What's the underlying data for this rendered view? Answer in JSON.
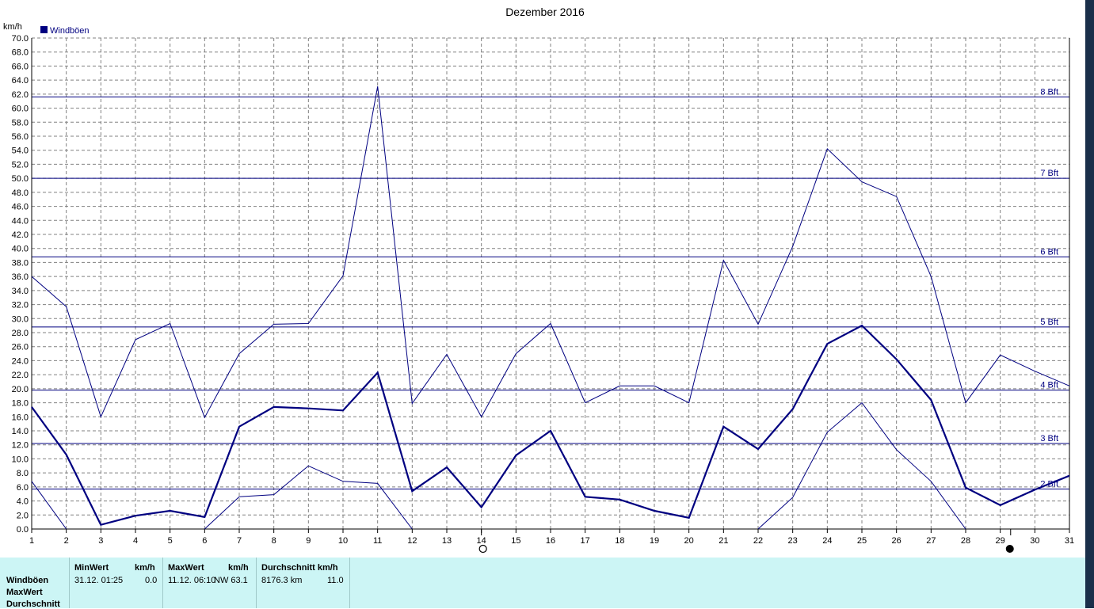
{
  "chart_data": {
    "type": "line",
    "title": "Dezember 2016",
    "ylabel": "km/h",
    "legend": [
      "Windböen"
    ],
    "legend_position": "top-left",
    "x": [
      1,
      2,
      3,
      4,
      5,
      6,
      7,
      8,
      9,
      10,
      11,
      12,
      13,
      14,
      15,
      16,
      17,
      18,
      19,
      20,
      21,
      22,
      23,
      24,
      25,
      26,
      27,
      28,
      29,
      30,
      31
    ],
    "xlim": [
      1,
      31
    ],
    "ylim": [
      0,
      70
    ],
    "ytick_step": 2,
    "grid": true,
    "series": [
      {
        "name": "Windböen",
        "values": [
          36.0,
          31.7,
          16.0,
          27.0,
          29.3,
          15.9,
          25.0,
          29.2,
          29.3,
          36.1,
          63.1,
          17.9,
          24.9,
          16.0,
          25.0,
          29.3,
          18.0,
          20.4,
          20.4,
          18.0,
          38.3,
          29.2,
          40.3,
          54.2,
          49.5,
          47.4,
          36.0,
          18.0,
          24.8,
          22.5,
          20.4
        ],
        "color": "#000080",
        "style": "max"
      },
      {
        "name": "Windböen",
        "values": [
          17.4,
          10.6,
          0.6,
          1.9,
          2.6,
          1.7,
          14.6,
          17.4,
          17.2,
          16.9,
          22.3,
          5.4,
          8.8,
          3.1,
          10.5,
          14.0,
          4.6,
          4.2,
          2.6,
          1.6,
          14.6,
          11.4,
          17.1,
          26.4,
          29.0,
          24.2,
          18.4,
          5.9,
          3.4,
          5.6,
          7.6
        ],
        "color": "#000080",
        "style": "avg"
      },
      {
        "name": "Windböen",
        "values": [
          6.8,
          0.0,
          null,
          null,
          null,
          0.0,
          4.6,
          4.9,
          9.0,
          6.8,
          6.5,
          0.0,
          null,
          null,
          null,
          null,
          null,
          null,
          null,
          null,
          null,
          0.0,
          4.5,
          13.8,
          18.0,
          11.3,
          6.8,
          0.0,
          null,
          null,
          null
        ],
        "color": "#000080",
        "style": "min"
      }
    ],
    "reference_lines": [
      {
        "label": "2 Bft",
        "value": 5.7
      },
      {
        "label": "3 Bft",
        "value": 12.2
      },
      {
        "label": "4 Bft",
        "value": 19.8
      },
      {
        "label": "5 Bft",
        "value": 28.8
      },
      {
        "label": "6 Bft",
        "value": 38.8
      },
      {
        "label": "7 Bft",
        "value": 50.0
      },
      {
        "label": "8 Bft",
        "value": 61.6
      }
    ],
    "moon_markers": [
      {
        "x": 14,
        "symbol": "○"
      },
      {
        "x": 29.3,
        "symbol": "●"
      }
    ]
  },
  "stats": {
    "row_labels": [
      "Windböen",
      "MaxWert",
      "Durchschnitt"
    ],
    "min_header": "MinWert",
    "min_unit": "km/h",
    "min_time": "31.12.  01:25",
    "min_value": "0.0",
    "max_header": "MaxWert",
    "max_unit": "km/h",
    "max_time": "11.12.  06:10",
    "max_dir_value": "NW 63.1",
    "avg_header": "Durchschnitt km/h",
    "avg_distance": "8176.3 km",
    "avg_value": "11.0"
  },
  "colors": {
    "line": "#000080",
    "panel": "#ccf5f5",
    "grid": "#808080"
  }
}
